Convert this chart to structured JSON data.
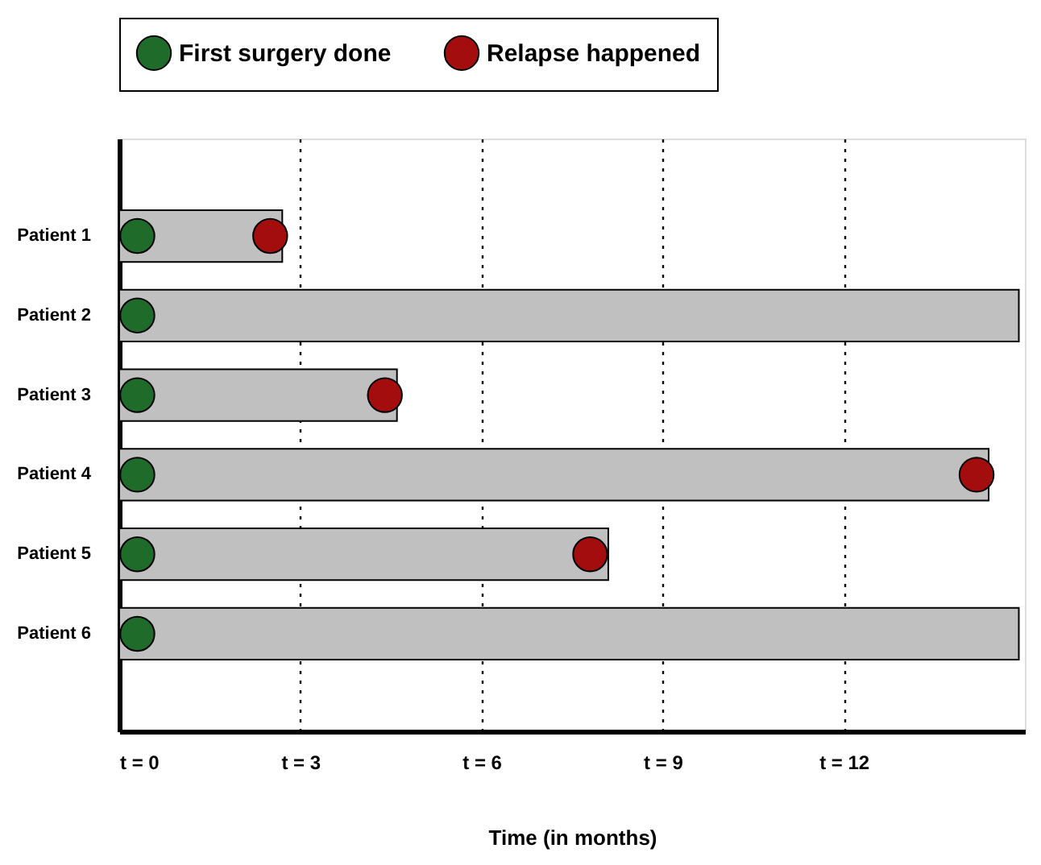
{
  "chart_data": {
    "type": "bar",
    "orientation": "horizontal",
    "xlabel": "Time (in months)",
    "categories": [
      "Patient 1",
      "Patient 2",
      "Patient 3",
      "Patient 4",
      "Patient 5",
      "Patient 6"
    ],
    "xlim": [
      0,
      15
    ],
    "xticks": [
      {
        "value": 0,
        "label": "t = 0"
      },
      {
        "value": 3,
        "label": "t = 3"
      },
      {
        "value": 6,
        "label": "t = 6"
      },
      {
        "value": 9,
        "label": "t = 9"
      },
      {
        "value": 12,
        "label": "t = 12"
      }
    ],
    "grid": "x",
    "line_style": "dotted",
    "legend": "top",
    "marker": "circle",
    "series": [
      {
        "color": "#c0c0c0",
        "values": [
          2.7,
          14.9,
          4.6,
          14.4,
          8.1,
          14.9
        ]
      },
      {
        "type": "scatter",
        "name": "First surgery done",
        "color": "#1e6b2a",
        "values": [
          0.3,
          0.3,
          0.3,
          0.3,
          0.3,
          0.3
        ]
      },
      {
        "type": "scatter",
        "name": "Relapse happened",
        "color": "#a30d0d",
        "values": [
          2.5,
          null,
          4.4,
          14.2,
          7.8,
          null
        ]
      }
    ]
  }
}
